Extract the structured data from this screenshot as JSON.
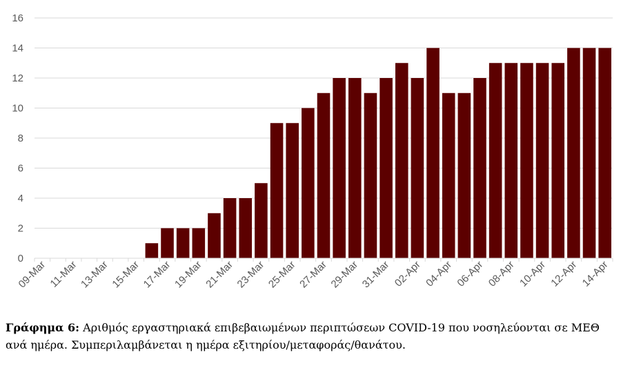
{
  "chart_data": {
    "type": "bar",
    "title": "",
    "xlabel": "",
    "ylabel": "",
    "ylim": [
      0,
      16
    ],
    "yticks": [
      0,
      2,
      4,
      6,
      8,
      10,
      12,
      14,
      16
    ],
    "grid": true,
    "bar_color": "#5c0000",
    "categories": [
      "09-Mar",
      "10-Mar",
      "11-Mar",
      "12-Mar",
      "13-Mar",
      "14-Mar",
      "15-Mar",
      "16-Mar",
      "17-Mar",
      "18-Mar",
      "19-Mar",
      "20-Mar",
      "21-Mar",
      "22-Mar",
      "23-Mar",
      "24-Mar",
      "25-Mar",
      "26-Mar",
      "27-Mar",
      "28-Mar",
      "29-Mar",
      "30-Mar",
      "31-Mar",
      "01-Apr",
      "02-Apr",
      "03-Apr",
      "04-Apr",
      "05-Apr",
      "06-Apr",
      "07-Apr",
      "08-Apr",
      "09-Apr",
      "10-Apr",
      "11-Apr",
      "12-Apr",
      "13-Apr",
      "14-Apr"
    ],
    "x_tick_labels": [
      "09-Mar",
      "11-Mar",
      "13-Mar",
      "15-Mar",
      "17-Mar",
      "19-Mar",
      "21-Mar",
      "23-Mar",
      "25-Mar",
      "27-Mar",
      "29-Mar",
      "31-Mar",
      "02-Apr",
      "04-Apr",
      "06-Apr",
      "08-Apr",
      "10-Apr",
      "12-Apr",
      "14-Apr"
    ],
    "values": [
      0,
      0,
      0,
      0,
      0,
      0,
      0,
      1,
      2,
      2,
      2,
      3,
      4,
      4,
      5,
      9,
      9,
      10,
      11,
      12,
      12,
      11,
      12,
      13,
      12,
      14,
      11,
      11,
      12,
      13,
      13,
      13,
      13,
      13,
      14,
      14,
      14
    ]
  },
  "caption": {
    "label": "Γράφημα 6:",
    "text": " Αριθμός εργαστηριακά επιβεβαιωμένων περιπτώσεων COVID-19 που νοσηλεύονται σε ΜΕΘ ανά ημέρα. Συμπεριλαμβάνεται η ημέρα εξιτηρίου/μεταφοράς/θανάτου."
  }
}
